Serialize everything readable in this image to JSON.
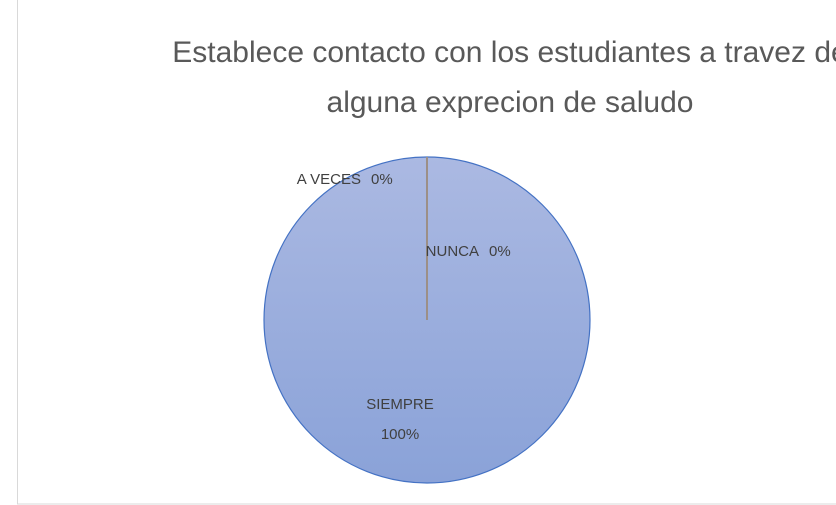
{
  "chart_data": {
    "type": "pie",
    "title": "Establece contacto con los estudiantes a travez de alguna exprecion de saludo",
    "categories": [
      "SIEMPRE",
      "NUNCA",
      "A VECES"
    ],
    "values": [
      100,
      0,
      0
    ],
    "value_labels": [
      "100%",
      "0%",
      "0%"
    ],
    "color": "#8fa6da"
  }
}
